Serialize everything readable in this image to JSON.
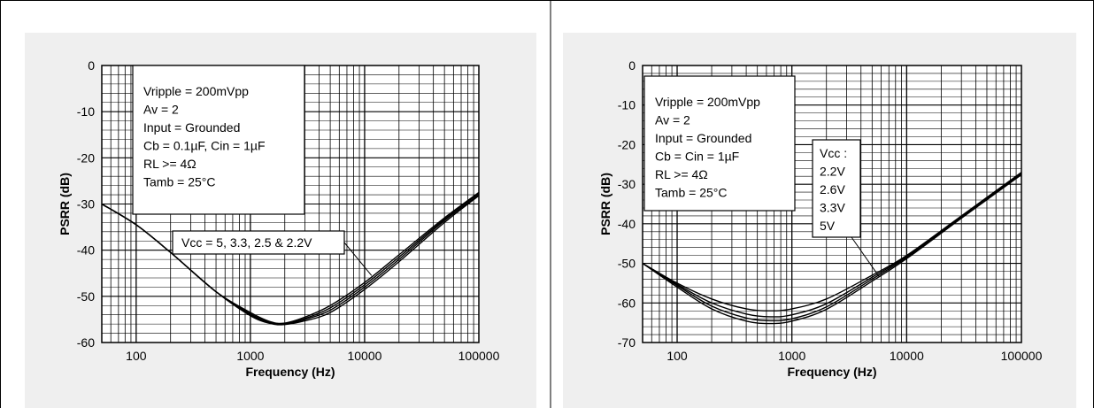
{
  "chart_data": [
    {
      "type": "line",
      "xlabel": "Frequency (Hz)",
      "ylabel": "PSRR (dB)",
      "xscale": "log",
      "xlim": [
        50,
        100000
      ],
      "ylim": [
        -60,
        0
      ],
      "x_ticks": [
        100,
        1000,
        10000,
        100000
      ],
      "x_tick_labels": [
        "100",
        "1000",
        "10000",
        "100000"
      ],
      "y_ticks": [
        0,
        -10,
        -20,
        -30,
        -40,
        -50,
        -60
      ],
      "y_tick_labels": [
        "0",
        "-10",
        "-20",
        "-30",
        "-40",
        "-50",
        "-60"
      ],
      "grid": true,
      "conditions": [
        "Vripple = 200mVpp",
        "Av = 2",
        "Input = Grounded",
        "Cb =  0.1µF, Cin = 1µF",
        "RL >= 4Ω",
        "Tamb  = 25°C"
      ],
      "annotation": "Vcc = 5, 3.3, 2.5 & 2.2V",
      "annotation_target": {
        "x": 11500,
        "y": -45.5
      },
      "series": [
        {
          "x": [
            50,
            100,
            200,
            500,
            1000,
            1500,
            2000,
            3000,
            5000,
            10000,
            20000,
            50000,
            100000
          ],
          "values": [
            -30,
            -34.5,
            -40.5,
            -49,
            -53.5,
            -55.5,
            -55.8,
            -54.5,
            -52,
            -47,
            -41,
            -33,
            -27.5
          ]
        },
        {
          "x": [
            50,
            100,
            200,
            500,
            1000,
            1500,
            2000,
            3000,
            5000,
            10000,
            20000,
            50000,
            100000
          ],
          "values": [
            -30,
            -34.5,
            -40.5,
            -49,
            -53.8,
            -55.6,
            -56,
            -54.8,
            -52.5,
            -47.5,
            -41.5,
            -33.3,
            -27.7
          ]
        },
        {
          "x": [
            50,
            100,
            200,
            500,
            1000,
            1500,
            2000,
            3000,
            5000,
            10000,
            20000,
            50000,
            100000
          ],
          "values": [
            -30,
            -34.5,
            -40.5,
            -49,
            -54,
            -55.8,
            -56,
            -55,
            -53,
            -48,
            -42,
            -33.6,
            -28
          ]
        },
        {
          "x": [
            50,
            100,
            200,
            500,
            1000,
            1500,
            2000,
            3000,
            5000,
            10000,
            20000,
            50000,
            100000
          ],
          "values": [
            -30,
            -34.5,
            -40.5,
            -49,
            -54.2,
            -55.9,
            -56.1,
            -55.3,
            -53.5,
            -48.5,
            -42.5,
            -34,
            -28.2
          ]
        }
      ]
    },
    {
      "type": "line",
      "xlabel": "Frequency (Hz)",
      "ylabel": "PSRR (dB)",
      "xscale": "log",
      "xlim": [
        50,
        100000
      ],
      "ylim": [
        -70,
        0
      ],
      "x_ticks": [
        100,
        1000,
        10000,
        100000
      ],
      "x_tick_labels": [
        "100",
        "1000",
        "10000",
        "100000"
      ],
      "y_ticks": [
        0,
        -10,
        -20,
        -30,
        -40,
        -50,
        -60,
        -70
      ],
      "y_tick_labels": [
        "0",
        "-10",
        "-20",
        "-30",
        "-40",
        "-50",
        "-60",
        "-70"
      ],
      "grid": true,
      "conditions": [
        "Vripple = 200mVpp",
        "Av = 2",
        "Input = Grounded",
        "Cb = Cin = 1µF",
        "RL >= 4Ω",
        "Tamb  = 25°C"
      ],
      "annotation_lines": [
        "Vcc :",
        "2.2V",
        "2.6V",
        "3.3V",
        "5V"
      ],
      "annotation_target": {
        "x": 5800,
        "y": -53.5
      },
      "series": [
        {
          "name": "2.2V",
          "x": [
            50,
            100,
            200,
            400,
            650,
            1000,
            2000,
            5000,
            10000,
            30000,
            100000
          ],
          "values": [
            -50,
            -55,
            -59,
            -61.5,
            -62,
            -61.5,
            -59,
            -53,
            -48,
            -38,
            -27
          ]
        },
        {
          "name": "2.6V",
          "x": [
            50,
            100,
            200,
            400,
            650,
            1000,
            2000,
            5000,
            10000,
            30000,
            100000
          ],
          "values": [
            -50,
            -55.3,
            -60,
            -62.8,
            -63.5,
            -63,
            -60.2,
            -53.5,
            -48.2,
            -38.2,
            -27.2
          ]
        },
        {
          "name": "3.3V",
          "x": [
            50,
            100,
            200,
            400,
            650,
            1000,
            2000,
            5000,
            10000,
            30000,
            100000
          ],
          "values": [
            -50,
            -55.6,
            -60.8,
            -63.8,
            -64.5,
            -64,
            -61,
            -54,
            -48.5,
            -38.4,
            -27.4
          ]
        },
        {
          "name": "5V",
          "x": [
            50,
            100,
            200,
            400,
            650,
            1000,
            2000,
            5000,
            10000,
            30000,
            100000
          ],
          "values": [
            -50,
            -56,
            -61.5,
            -64.6,
            -65.2,
            -64.6,
            -61.6,
            -54.5,
            -48.8,
            -38.6,
            -27.6
          ]
        }
      ]
    }
  ]
}
